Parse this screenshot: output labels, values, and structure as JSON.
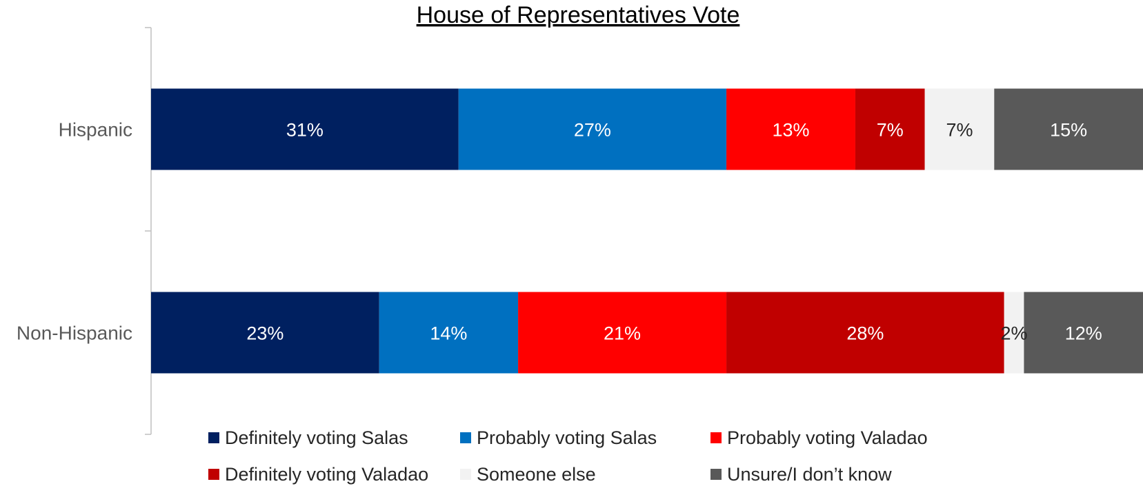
{
  "chart_data": {
    "type": "bar",
    "orientation": "horizontal",
    "stacked": true,
    "title": "House of Representatives Vote",
    "categories": [
      "Hispanic",
      "Non-Hispanic"
    ],
    "series": [
      {
        "name": "Definitely voting Salas",
        "color": "#002060",
        "label_color": "#ffffff",
        "values": [
          31,
          23
        ],
        "labels": [
          "31%",
          "23%"
        ]
      },
      {
        "name": "Probably voting Salas",
        "color": "#0070c0",
        "label_color": "#ffffff",
        "values": [
          27,
          14
        ],
        "labels": [
          "27%",
          "14%"
        ]
      },
      {
        "name": "Probably voting Valadao",
        "color": "#ff0000",
        "label_color": "#ffffff",
        "values": [
          13,
          21
        ],
        "labels": [
          "13%",
          "21%"
        ]
      },
      {
        "name": "Definitely voting Valadao",
        "color": "#c00000",
        "label_color": "#ffffff",
        "values": [
          7,
          28
        ],
        "labels": [
          "7%",
          "28%"
        ]
      },
      {
        "name": "Someone else",
        "color": "#f2f2f2",
        "label_color": "#262626",
        "values": [
          7,
          2
        ],
        "labels": [
          "7%",
          "2%"
        ]
      },
      {
        "name": "Unsure/I don’t know",
        "color": "#595959",
        "label_color": "#ffffff",
        "values": [
          15,
          12
        ],
        "labels": [
          "15%",
          "12%"
        ]
      }
    ],
    "legend_position": "bottom",
    "grid": false
  }
}
